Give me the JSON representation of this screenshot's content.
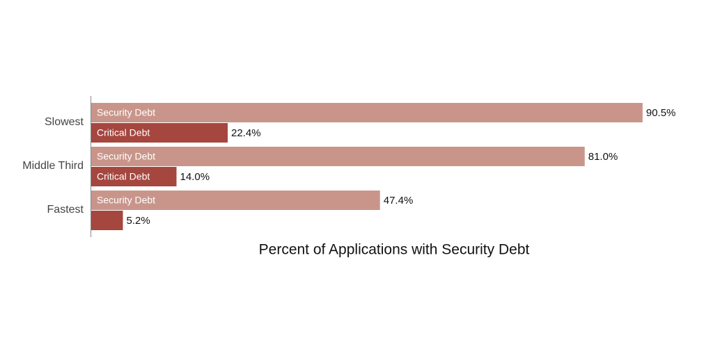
{
  "chart_data": {
    "type": "barh",
    "xlabel": "Percent of Applications with Security Debt",
    "categories": [
      "Slowest",
      "Middle Third",
      "Fastest"
    ],
    "series": [
      {
        "name": "Security Debt",
        "color": "#c9958a",
        "values": [
          90.5,
          81.0,
          47.4
        ],
        "value_labels": [
          "90.5%",
          "81.0%",
          "47.4%"
        ]
      },
      {
        "name": "Critical Debt",
        "color": "#a5463f",
        "values": [
          22.4,
          14.0,
          5.2
        ],
        "value_labels": [
          "22.4%",
          "14.0%",
          "5.2%"
        ]
      }
    ],
    "xlim": [
      0,
      100
    ]
  }
}
